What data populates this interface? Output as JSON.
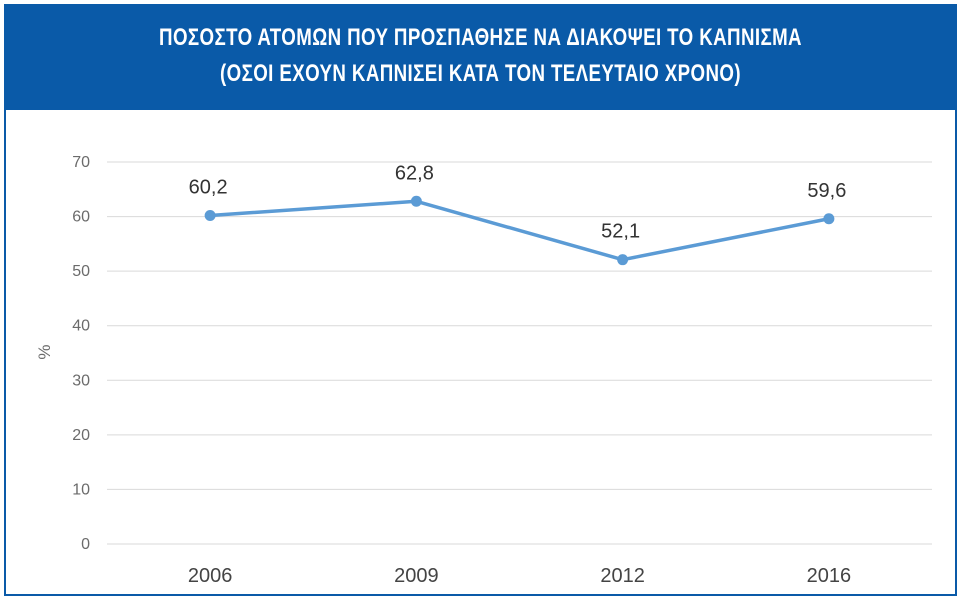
{
  "chart_data": {
    "type": "line",
    "title_line1": "ΠΟΣΟΣΤΟ ΑΤΟΜΩΝ ΠΟΥ ΠΡΟΣΠΑΘΗΣΕ ΝΑ ΔΙΑΚΟΨΕΙ ΤΟ ΚΑΠΝΙΣΜΑ",
    "title_line2": "(ΟΣΟΙ ΕΧΟΥΝ ΚΑΠΝΙΣΕΙ ΚΑΤΑ ΤΟΝ ΤΕΛΕΥΤΑΙΟ ΧΡΟΝΟ)",
    "categories": [
      "2006",
      "2009",
      "2012",
      "2016"
    ],
    "values": [
      60.2,
      62.8,
      52.1,
      59.6
    ],
    "data_labels": [
      "60,2",
      "62,8",
      "52,1",
      "59,6"
    ],
    "ylabel": "%",
    "xlabel": "",
    "ylim": [
      0,
      70
    ],
    "yticks": [
      0,
      10,
      20,
      30,
      40,
      50,
      60,
      70
    ],
    "grid": true,
    "line_color": "#5b9bd5",
    "header_color": "#0a5aa8"
  }
}
